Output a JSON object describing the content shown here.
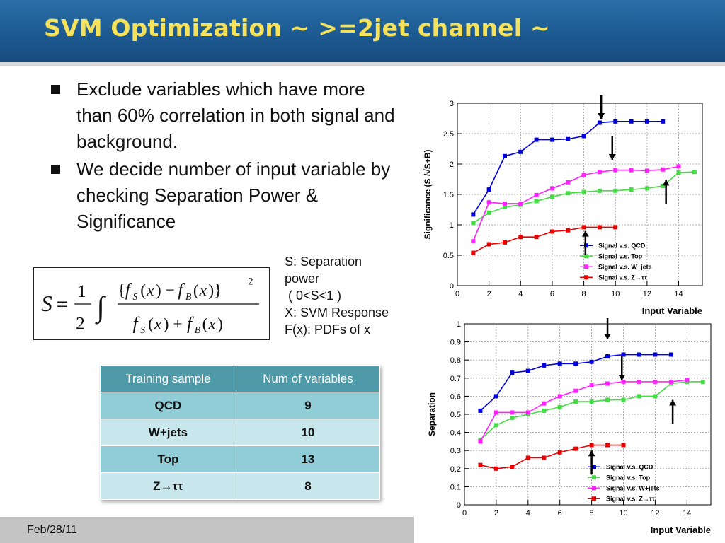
{
  "title": "SVM Optimization   ~ >=2jet channel ~",
  "bullets": [
    "Exclude variables which have more than 60% correlation in both signal and background.",
    "We decide number of input variable by checking Separation Power & Significance"
  ],
  "notes": [
    "S: Separation",
    "power",
    " ( 0<S<1 )",
    "X: SVM Response",
    "F(x): PDFs of x"
  ],
  "table": {
    "headers": [
      "Training sample",
      "Num of variables"
    ],
    "rows": [
      {
        "sample": "QCD",
        "num": "9"
      },
      {
        "sample": "W+jets",
        "num": "10"
      },
      {
        "sample": "Top",
        "num": "13"
      },
      {
        "sample": "Z→ττ",
        "num": "8"
      }
    ]
  },
  "footer": {
    "date": "Feb/28/11"
  },
  "colors": {
    "title_text": "#f5e15a",
    "title_bg": "#1f5b93",
    "table_header": "#4f9aa8"
  },
  "chart_data": [
    {
      "type": "line",
      "xlabel": "Input Variable",
      "ylabel": "Significance (S /√S+B)",
      "xlim": [
        0,
        15.5
      ],
      "ylim": [
        0,
        3
      ],
      "xticks": [
        0,
        2,
        4,
        6,
        8,
        10,
        12,
        14
      ],
      "yticks": [
        0,
        0.5,
        1,
        1.5,
        2,
        2.5,
        3
      ],
      "grid": true,
      "legend_position": "bottom-right",
      "series": [
        {
          "name": "Signal v.s. QCD",
          "color": "#0000dd",
          "x": [
            1,
            2,
            3,
            4,
            5,
            6,
            7,
            8,
            9,
            10,
            11,
            12,
            13
          ],
          "y": [
            1.17,
            1.58,
            2.13,
            2.2,
            2.4,
            2.4,
            2.41,
            2.46,
            2.68,
            2.7,
            2.7,
            2.7,
            2.7
          ]
        },
        {
          "name": "Signal v.s. Top",
          "color": "#44dd44",
          "x": [
            1,
            2,
            3,
            4,
            5,
            6,
            7,
            8,
            9,
            10,
            11,
            12,
            13,
            14,
            15
          ],
          "y": [
            1.03,
            1.2,
            1.29,
            1.33,
            1.39,
            1.46,
            1.52,
            1.54,
            1.56,
            1.56,
            1.58,
            1.6,
            1.64,
            1.86,
            1.87
          ]
        },
        {
          "name": "Signal v.s. W+jets",
          "color": "#ff22ff",
          "x": [
            1,
            2,
            3,
            4,
            5,
            6,
            7,
            8,
            9,
            10,
            11,
            12,
            13,
            14
          ],
          "y": [
            0.73,
            1.37,
            1.35,
            1.35,
            1.49,
            1.6,
            1.7,
            1.82,
            1.87,
            1.9,
            1.9,
            1.89,
            1.91,
            1.96
          ]
        },
        {
          "name": "Signal v.s. Z→ττ",
          "color": "#ee0000",
          "x": [
            1,
            2,
            3,
            4,
            5,
            6,
            7,
            8,
            9,
            10
          ],
          "y": [
            0.54,
            0.68,
            0.71,
            0.8,
            0.8,
            0.89,
            0.91,
            0.96,
            0.96,
            0.96
          ]
        }
      ],
      "arrows": [
        {
          "x": 9.1,
          "direction": "down"
        },
        {
          "x": 9.8,
          "direction": "down"
        },
        {
          "x": 13.2,
          "direction": "up"
        },
        {
          "x": 8.1,
          "direction": "up"
        }
      ]
    },
    {
      "type": "line",
      "xlabel": "Input Variable",
      "ylabel": "Separation",
      "xlim": [
        0,
        15.5
      ],
      "ylim": [
        0,
        1
      ],
      "xticks": [
        0,
        2,
        4,
        6,
        8,
        10,
        12,
        14
      ],
      "yticks": [
        0,
        0.1,
        0.2,
        0.3,
        0.4,
        0.5,
        0.6,
        0.7,
        0.8,
        0.9,
        1
      ],
      "grid": true,
      "legend_position": "bottom-right",
      "series": [
        {
          "name": "Signal v.s. QCD",
          "color": "#0000dd",
          "x": [
            1,
            2,
            3,
            4,
            5,
            6,
            7,
            8,
            9,
            10,
            11,
            12,
            13
          ],
          "y": [
            0.52,
            0.6,
            0.73,
            0.74,
            0.77,
            0.78,
            0.78,
            0.79,
            0.82,
            0.83,
            0.83,
            0.83,
            0.83
          ]
        },
        {
          "name": "Signal v.s. Top",
          "color": "#44dd44",
          "x": [
            1,
            2,
            3,
            4,
            5,
            6,
            7,
            8,
            9,
            10,
            11,
            12,
            13,
            14,
            15
          ],
          "y": [
            0.36,
            0.44,
            0.48,
            0.5,
            0.52,
            0.54,
            0.57,
            0.57,
            0.58,
            0.58,
            0.6,
            0.6,
            0.67,
            0.68,
            0.68
          ]
        },
        {
          "name": "Signal v.s. W+jets",
          "color": "#ff22ff",
          "x": [
            1,
            2,
            3,
            4,
            5,
            6,
            7,
            8,
            9,
            10,
            11,
            12,
            13,
            14
          ],
          "y": [
            0.35,
            0.51,
            0.51,
            0.51,
            0.56,
            0.6,
            0.63,
            0.66,
            0.67,
            0.68,
            0.68,
            0.68,
            0.68,
            0.69
          ]
        },
        {
          "name": "Signal v.s. Z→ττ",
          "color": "#ee0000",
          "x": [
            1,
            2,
            3,
            4,
            5,
            6,
            7,
            8,
            9,
            10
          ],
          "y": [
            0.22,
            0.2,
            0.21,
            0.26,
            0.26,
            0.29,
            0.31,
            0.33,
            0.33,
            0.33
          ]
        }
      ],
      "arrows": [
        {
          "x": 9.0,
          "direction": "down"
        },
        {
          "x": 9.9,
          "direction": "down"
        },
        {
          "x": 13.1,
          "direction": "up"
        },
        {
          "x": 8.0,
          "direction": "up"
        }
      ]
    }
  ]
}
